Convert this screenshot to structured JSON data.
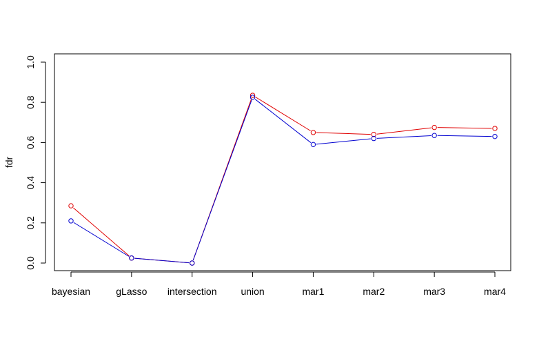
{
  "chart_data": {
    "type": "line",
    "title": "",
    "xlabel": "",
    "ylabel": "fdr",
    "categories": [
      "bayesian",
      "gLasso",
      "intersection",
      "union",
      "mar1",
      "mar2",
      "mar3",
      "mar4"
    ],
    "ylim": [
      0.0,
      1.0
    ],
    "yticks": [
      "0.0",
      "0.2",
      "0.4",
      "0.6",
      "0.8",
      "1.0"
    ],
    "grid": false,
    "legend": "none",
    "series": [
      {
        "color": "#e00000",
        "marker": "open-circle",
        "values": [
          0.285,
          0.025,
          0.0,
          0.835,
          0.65,
          0.64,
          0.675,
          0.67
        ]
      },
      {
        "color": "#0000d0",
        "marker": "open-circle",
        "values": [
          0.21,
          0.025,
          0.0,
          0.825,
          0.59,
          0.62,
          0.635,
          0.63
        ]
      }
    ]
  }
}
